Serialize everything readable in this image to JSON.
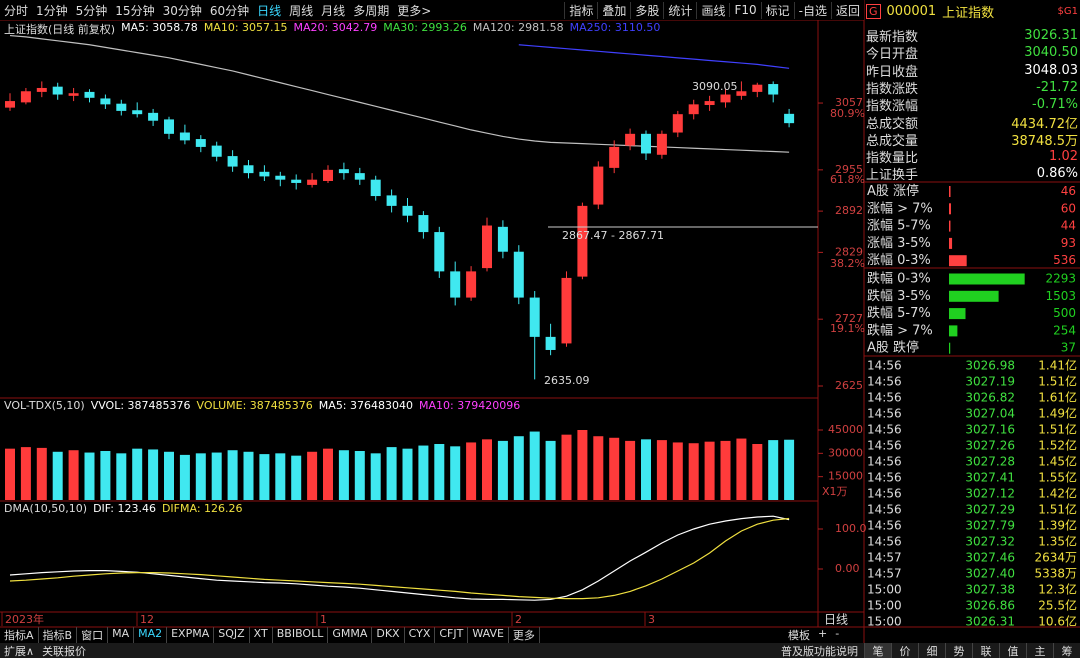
{
  "toolbar": {
    "left": [
      {
        "label": "分时"
      },
      {
        "label": "1分钟"
      },
      {
        "label": "5分钟"
      },
      {
        "label": "15分钟"
      },
      {
        "label": "30分钟"
      },
      {
        "label": "60分钟"
      },
      {
        "label": "日线",
        "active": true
      },
      {
        "label": "周线"
      },
      {
        "label": "月线"
      },
      {
        "label": "多周期"
      },
      {
        "label": "更多>"
      }
    ],
    "right": [
      {
        "label": "指标"
      },
      {
        "label": "叠加"
      },
      {
        "label": "多股"
      },
      {
        "label": "统计"
      },
      {
        "label": "画线"
      },
      {
        "label": "F10"
      },
      {
        "label": "标记"
      },
      {
        "label": "-自选"
      },
      {
        "label": "返回"
      }
    ]
  },
  "main": {
    "title": "上证指数(日线 前复权)",
    "legends": [
      {
        "label": "MA5: 3058.78",
        "color": "#ffffff"
      },
      {
        "label": "MA10: 3057.15",
        "color": "#f0e040"
      },
      {
        "label": "MA20: 3042.79",
        "color": "#ff40ff"
      },
      {
        "label": "MA30: 2993.26",
        "color": "#40e040"
      },
      {
        "label": "MA120: 2981.58",
        "color": "#c0c0c0"
      },
      {
        "label": "MA250: 3110.50",
        "color": "#4040ff"
      }
    ],
    "price_ticks": [
      3057,
      2955,
      2892,
      2829,
      2727,
      2625
    ],
    "fib_labels": [
      "80.9%",
      "61.8%",
      "38.2%",
      "19.1%"
    ],
    "annotations": [
      "3090.05",
      "2867.47 - 2867.71",
      "2635.09"
    ],
    "candles": [
      [
        3050,
        3072,
        3045,
        3060
      ],
      [
        3058,
        3080,
        3055,
        3075
      ],
      [
        3074,
        3090,
        3066,
        3080
      ],
      [
        3082,
        3088,
        3062,
        3070
      ],
      [
        3068,
        3080,
        3060,
        3072
      ],
      [
        3074,
        3078,
        3058,
        3065
      ],
      [
        3064,
        3070,
        3048,
        3055
      ],
      [
        3056,
        3062,
        3038,
        3045
      ],
      [
        3046,
        3058,
        3035,
        3040
      ],
      [
        3042,
        3048,
        3022,
        3030
      ],
      [
        3032,
        3036,
        3002,
        3010
      ],
      [
        3012,
        3024,
        2994,
        3000
      ],
      [
        3002,
        3008,
        2982,
        2990
      ],
      [
        2992,
        2998,
        2968,
        2975
      ],
      [
        2976,
        2985,
        2952,
        2960
      ],
      [
        2962,
        2970,
        2942,
        2950
      ],
      [
        2952,
        2962,
        2938,
        2945
      ],
      [
        2946,
        2952,
        2930,
        2940
      ],
      [
        2940,
        2948,
        2925,
        2935
      ],
      [
        2932,
        2950,
        2928,
        2940
      ],
      [
        2938,
        2962,
        2935,
        2955
      ],
      [
        2956,
        2966,
        2940,
        2950
      ],
      [
        2950,
        2958,
        2932,
        2940
      ],
      [
        2940,
        2946,
        2908,
        2915
      ],
      [
        2916,
        2925,
        2890,
        2900
      ],
      [
        2900,
        2912,
        2875,
        2885
      ],
      [
        2886,
        2892,
        2850,
        2860
      ],
      [
        2860,
        2868,
        2790,
        2800
      ],
      [
        2800,
        2815,
        2748,
        2760
      ],
      [
        2760,
        2808,
        2755,
        2800
      ],
      [
        2805,
        2882,
        2800,
        2870
      ],
      [
        2868,
        2878,
        2820,
        2830
      ],
      [
        2830,
        2840,
        2750,
        2760
      ],
      [
        2760,
        2770,
        2635.09,
        2700
      ],
      [
        2700,
        2720,
        2672,
        2680
      ],
      [
        2690,
        2800,
        2685,
        2790
      ],
      [
        2792,
        2905,
        2788,
        2900
      ],
      [
        2902,
        2968,
        2895,
        2960
      ],
      [
        2958,
        3000,
        2950,
        2990
      ],
      [
        2992,
        3018,
        2985,
        3010
      ],
      [
        3010,
        3015,
        2970,
        2980
      ],
      [
        2978,
        3015,
        2972,
        3010
      ],
      [
        3012,
        3045,
        3005,
        3040
      ],
      [
        3040,
        3062,
        3032,
        3055
      ],
      [
        3054,
        3068,
        3045,
        3060
      ],
      [
        3058,
        3078,
        3050,
        3070
      ],
      [
        3068,
        3090.05,
        3062,
        3075
      ],
      [
        3074,
        3088,
        3066,
        3085
      ],
      [
        3086,
        3090,
        3058,
        3070
      ],
      [
        3040.5,
        3048,
        3020,
        3026.31
      ]
    ],
    "ma120": [
      3160,
      3158,
      3155,
      3152,
      3149,
      3146,
      3142,
      3138,
      3134,
      3130,
      3126,
      3121,
      3116,
      3111,
      3106,
      3100,
      3094,
      3088,
      3082,
      3076,
      3070,
      3064,
      3058,
      3052,
      3046,
      3040,
      3034,
      3028,
      3022,
      3016,
      3011,
      3006,
      3002,
      2999,
      2997,
      2996,
      2995,
      2994,
      2993,
      2992,
      2991,
      2990,
      2989,
      2988,
      2987,
      2986,
      2985,
      2984,
      2983,
      2982
    ],
    "ma250": [
      null,
      null,
      null,
      null,
      null,
      null,
      null,
      null,
      null,
      null,
      null,
      null,
      null,
      null,
      null,
      null,
      null,
      null,
      null,
      null,
      null,
      null,
      null,
      null,
      null,
      null,
      null,
      null,
      null,
      null,
      null,
      null,
      3146,
      3144,
      3142,
      3140,
      3138,
      3136,
      3134,
      3132,
      3130,
      3128,
      3126,
      3124,
      3122,
      3120,
      3118,
      3116,
      3113,
      3110
    ]
  },
  "volume": {
    "title": "VOL-TDX(5,10)",
    "legends": [
      {
        "label": "VVOL: 387485376",
        "color": "#ffffff"
      },
      {
        "label": "VOLUME: 387485376",
        "color": "#f0e040"
      },
      {
        "label": "MA5: 376483040",
        "color": "#ffffff"
      },
      {
        "label": "MA10: 379420096",
        "color": "#ff40ff"
      }
    ],
    "ticks": [
      45000,
      30000,
      15000
    ],
    "unit": "X1万",
    "values": [
      33000,
      34000,
      33500,
      31000,
      32000,
      30500,
      31500,
      30000,
      33000,
      32500,
      31000,
      29000,
      30000,
      30500,
      32000,
      31000,
      29500,
      30000,
      28500,
      31000,
      33000,
      32000,
      31500,
      30000,
      34000,
      33000,
      35000,
      36000,
      34500,
      37000,
      39000,
      38000,
      41000,
      44000,
      38000,
      42000,
      45000,
      41000,
      40000,
      38000,
      39000,
      38500,
      37000,
      36500,
      37500,
      38000,
      39500,
      36000,
      38500,
      38748.5
    ]
  },
  "dma": {
    "title": "DMA(10,50,10)",
    "legends": [
      {
        "label": "DIF: 123.46",
        "color": "#ffffff"
      },
      {
        "label": "DIFMA: 126.26",
        "color": "#f0e040"
      }
    ],
    "ticks": [
      {
        "value": 100,
        "label": "100.0"
      },
      {
        "value": 0,
        "label": "0.00"
      }
    ],
    "dif": [
      -15,
      -12,
      -9,
      -7,
      -5,
      -4,
      -4,
      -6,
      -8,
      -12,
      -16,
      -20,
      -24,
      -28,
      -30,
      -32,
      -34,
      -35,
      -37,
      -40,
      -43,
      -45,
      -48,
      -52,
      -56,
      -60,
      -64,
      -68,
      -72,
      -75,
      -76,
      -76,
      -77,
      -78,
      -76,
      -68,
      -52,
      -30,
      -5,
      20,
      42,
      65,
      85,
      100,
      112,
      120,
      126,
      130,
      132,
      123.46
    ],
    "difma": [
      -30,
      -28,
      -25,
      -22,
      -18,
      -15,
      -12,
      -10,
      -9,
      -9,
      -10,
      -12,
      -14,
      -17,
      -20,
      -23,
      -26,
      -28,
      -30,
      -32,
      -34,
      -36,
      -38,
      -41,
      -44,
      -47,
      -50,
      -53,
      -56,
      -60,
      -63,
      -66,
      -69,
      -71,
      -73,
      -74,
      -74,
      -72,
      -66,
      -56,
      -42,
      -25,
      -5,
      15,
      40,
      70,
      95,
      112,
      122,
      126.26
    ]
  },
  "dates": [
    "2023年",
    "12",
    "1",
    "2",
    "3"
  ],
  "period": "日线",
  "quote": {
    "tag": "G",
    "code": "000001",
    "name": "上证指数",
    "badge": "$G1",
    "rows": [
      {
        "label": "最新指数",
        "value": "3026.31",
        "color": "#40e040"
      },
      {
        "label": "今日开盘",
        "value": "3040.50",
        "color": "#40e040"
      },
      {
        "label": "昨日收盘",
        "value": "3048.03",
        "color": "#ffffff"
      },
      {
        "label": "指数涨跌",
        "value": "-21.72",
        "color": "#40e040"
      },
      {
        "label": "指数涨幅",
        "value": "-0.71%",
        "color": "#40e040"
      },
      {
        "label": "总成交额",
        "value": "4434.72亿",
        "color": "#f0e040"
      },
      {
        "label": "总成交量",
        "value": "38748.5万",
        "color": "#f0e040"
      },
      {
        "label": "指数量比",
        "value": "1.02",
        "color": "#ff4040"
      },
      {
        "label": "上证换手",
        "value": "0.86%",
        "color": "#ffffff"
      }
    ],
    "breadth": [
      {
        "label": "A股 涨停",
        "value": 46,
        "color": "#ff4040"
      },
      {
        "label": "涨幅 > 7%",
        "value": 60,
        "color": "#ff4040"
      },
      {
        "label": "涨幅 5-7%",
        "value": 44,
        "color": "#ff4040"
      },
      {
        "label": "涨幅 3-5%",
        "value": 93,
        "color": "#ff4040"
      },
      {
        "label": "涨幅 0-3%",
        "value": 536,
        "color": "#ff4040"
      },
      {
        "label": "跌幅 0-3%",
        "value": 2293,
        "color": "#20d020"
      },
      {
        "label": "跌幅 3-5%",
        "value": 1503,
        "color": "#20d020"
      },
      {
        "label": "跌幅 5-7%",
        "value": 500,
        "color": "#20d020"
      },
      {
        "label": "跌幅 > 7%",
        "value": 254,
        "color": "#20d020"
      },
      {
        "label": "A股 跌停",
        "value": 37,
        "color": "#20d020"
      }
    ],
    "ticks": [
      [
        "14:56",
        "3026.98",
        "1.41亿"
      ],
      [
        "14:56",
        "3027.19",
        "1.51亿"
      ],
      [
        "14:56",
        "3026.82",
        "1.61亿"
      ],
      [
        "14:56",
        "3027.04",
        "1.49亿"
      ],
      [
        "14:56",
        "3027.16",
        "1.51亿"
      ],
      [
        "14:56",
        "3027.26",
        "1.52亿"
      ],
      [
        "14:56",
        "3027.28",
        "1.45亿"
      ],
      [
        "14:56",
        "3027.41",
        "1.55亿"
      ],
      [
        "14:56",
        "3027.12",
        "1.42亿"
      ],
      [
        "14:56",
        "3027.29",
        "1.51亿"
      ],
      [
        "14:56",
        "3027.79",
        "1.39亿"
      ],
      [
        "14:56",
        "3027.32",
        "1.35亿"
      ],
      [
        "14:57",
        "3027.46",
        "2634万"
      ],
      [
        "14:57",
        "3027.40",
        "5338万"
      ],
      [
        "15:00",
        "3027.38",
        "12.3亿"
      ],
      [
        "15:00",
        "3026.86",
        "25.5亿"
      ],
      [
        "15:00",
        "3026.31",
        "10.6亿"
      ]
    ]
  },
  "tabs": [
    {
      "label": "指标A"
    },
    {
      "label": "指标B"
    },
    {
      "label": "窗口"
    },
    {
      "label": "MA"
    },
    {
      "label": "MA2",
      "active": true
    },
    {
      "label": "EXPMA"
    },
    {
      "label": "SQJZ"
    },
    {
      "label": "XT"
    },
    {
      "label": "BBIBOLL"
    },
    {
      "label": "GMMA"
    },
    {
      "label": "DKX"
    },
    {
      "label": "CYX"
    },
    {
      "label": "CFJT"
    },
    {
      "label": "WAVE"
    },
    {
      "label": "更多"
    }
  ],
  "tab_right": [
    "模板",
    "+",
    "-"
  ],
  "status": {
    "left": [
      "扩展∧",
      "关联报价"
    ],
    "link": "普及版功能说明",
    "buttons": [
      "笔",
      "价",
      "细",
      "势",
      "联",
      "值",
      "主",
      "筹"
    ]
  }
}
